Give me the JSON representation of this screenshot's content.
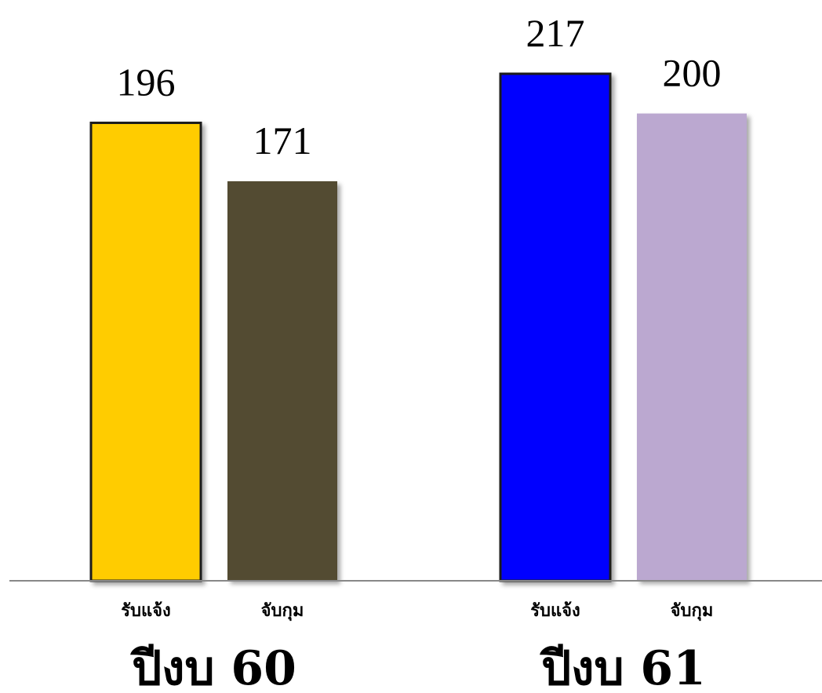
{
  "chart_data": {
    "type": "bar",
    "groups": [
      {
        "label": "ปีงบ 60",
        "bars": [
          {
            "category": "รับแจ้ง",
            "value": 196,
            "color": "#FFCC00"
          },
          {
            "category": "จับกุม",
            "value": 171,
            "color": "#524C30"
          }
        ]
      },
      {
        "label": "ปีงบ 61",
        "bars": [
          {
            "category": "รับแจ้ง",
            "value": 217,
            "color": "#0000FF"
          },
          {
            "category": "จับกุม",
            "value": 200,
            "color": "#BBA8D0"
          }
        ]
      }
    ],
    "ylim": [
      0,
      217
    ],
    "grid": false,
    "legend": "none"
  }
}
